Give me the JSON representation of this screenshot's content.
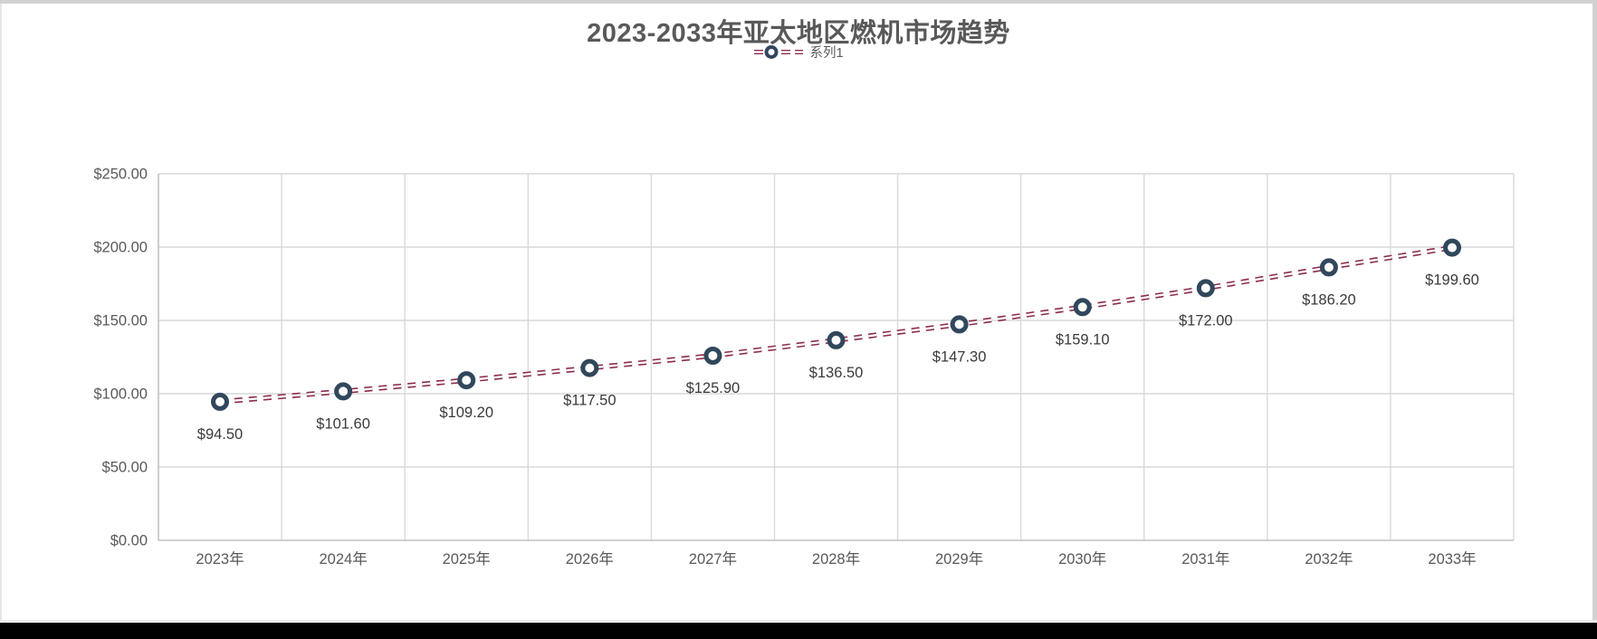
{
  "chart_data": {
    "type": "line",
    "title": "2023-2033年亚太地区燃机市场趋势",
    "categories": [
      "2023年",
      "2024年",
      "2025年",
      "2026年",
      "2027年",
      "2028年",
      "2029年",
      "2030年",
      "2031年",
      "2032年",
      "2033年"
    ],
    "series": [
      {
        "name": "系列1",
        "values": [
          94.5,
          101.6,
          109.2,
          117.5,
          125.9,
          136.5,
          147.3,
          159.1,
          172.0,
          186.2,
          199.6
        ],
        "data_labels": [
          "$94.50",
          "$101.60",
          "$109.20",
          "$117.50",
          "$125.90",
          "$136.50",
          "$147.30",
          "$159.10",
          "$172.00",
          "$186.20",
          "$199.60"
        ],
        "line_color": "#8C2D4B",
        "line_style": "dashed-double",
        "marker_shape": "circle",
        "marker_stroke": "#31475C",
        "marker_fill": "#FFFFFF"
      }
    ],
    "y_axis": {
      "min": 0,
      "max": 250,
      "step": 50,
      "tick_labels": [
        "$0.00",
        "$50.00",
        "$100.00",
        "$150.00",
        "$200.00",
        "$250.00"
      ],
      "grid": true
    },
    "x_axis": {
      "grid": true
    },
    "legend": {
      "position": "top",
      "label": "系列1"
    }
  },
  "colors": {
    "title_text": "#595959",
    "axis_text": "#595959",
    "data_label_text": "#3A3A3A",
    "gridline": "#D9D9D9",
    "axis_line": "#C2C2C2",
    "chart_background": "#FFFFFF",
    "window_edge": "#D2D2D2",
    "bottom_bar": "#000000"
  }
}
